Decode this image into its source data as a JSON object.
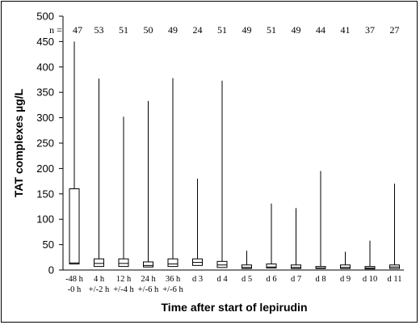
{
  "chart_data": {
    "type": "box",
    "xlabel": "Time after start of lepirudin",
    "ylabel": "TAT complexes µg/L",
    "ylim": [
      0,
      500
    ],
    "yticks": [
      0,
      50,
      100,
      150,
      200,
      250,
      300,
      350,
      400,
      450,
      500
    ],
    "n_prefix": "n =",
    "categories": [
      {
        "label_line1": "-48 h",
        "label_line2": "-0 h",
        "n": "47",
        "min": 12,
        "q1": 12,
        "median": 14,
        "q3": 160,
        "max": 450
      },
      {
        "label_line1": "4 h",
        "label_line2": "+/-2 h",
        "n": "53",
        "min": 7,
        "q1": 7,
        "median": 13,
        "q3": 22,
        "max": 377
      },
      {
        "label_line1": "12 h",
        "label_line2": "+/-4 h",
        "n": "51",
        "min": 7,
        "q1": 7,
        "median": 13,
        "q3": 22,
        "max": 302
      },
      {
        "label_line1": "24 h",
        "label_line2": "+/-6 h",
        "n": "50",
        "min": 6,
        "q1": 6,
        "median": 9,
        "q3": 16,
        "max": 333
      },
      {
        "label_line1": "36 h",
        "label_line2": "+/-6 h",
        "n": "49",
        "min": 7,
        "q1": 7,
        "median": 12,
        "q3": 22,
        "max": 378
      },
      {
        "label_line1": "d 3",
        "label_line2": "",
        "n": "24",
        "min": 9,
        "q1": 9,
        "median": 15,
        "q3": 22,
        "max": 180
      },
      {
        "label_line1": "d 4",
        "label_line2": "",
        "n": "51",
        "min": 5,
        "q1": 5,
        "median": 10,
        "q3": 17,
        "max": 373
      },
      {
        "label_line1": "d 5",
        "label_line2": "",
        "n": "49",
        "min": 3,
        "q1": 3,
        "median": 5,
        "q3": 10,
        "max": 38
      },
      {
        "label_line1": "d 6",
        "label_line2": "",
        "n": "51",
        "min": 4,
        "q1": 4,
        "median": 6,
        "q3": 12,
        "max": 131
      },
      {
        "label_line1": "d 7",
        "label_line2": "",
        "n": "49",
        "min": 3,
        "q1": 3,
        "median": 5,
        "q3": 10,
        "max": 122
      },
      {
        "label_line1": "d 8",
        "label_line2": "",
        "n": "44",
        "min": 3,
        "q1": 3,
        "median": 4,
        "q3": 7,
        "max": 195
      },
      {
        "label_line1": "d 9",
        "label_line2": "",
        "n": "41",
        "min": 3,
        "q1": 3,
        "median": 5,
        "q3": 10,
        "max": 36
      },
      {
        "label_line1": "d 10",
        "label_line2": "",
        "n": "37",
        "min": 2,
        "q1": 2,
        "median": 4,
        "q3": 7,
        "max": 58
      },
      {
        "label_line1": "d 11",
        "label_line2": "",
        "n": "27",
        "min": 3,
        "q1": 3,
        "median": 6,
        "q3": 10,
        "max": 170
      }
    ],
    "grid": false,
    "legend": "none"
  }
}
